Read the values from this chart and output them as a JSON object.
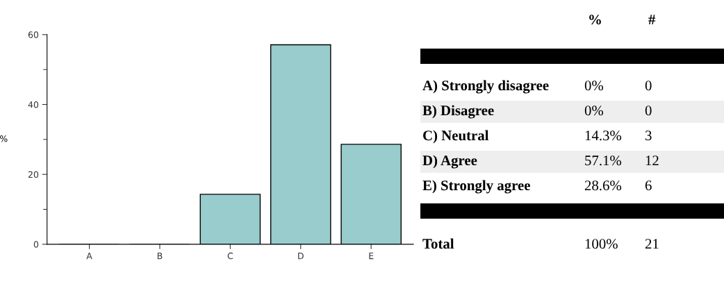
{
  "chart_data": [
    {
      "type": "bar",
      "categories": [
        "A",
        "B",
        "C",
        "D",
        "E"
      ],
      "values": [
        0,
        0,
        14.3,
        57.1,
        28.6
      ],
      "color": "#99cccc",
      "ylabel": "%",
      "ylim": [
        0,
        60
      ],
      "yticks": [
        0,
        20,
        40,
        60
      ],
      "grid": false,
      "legend": false
    },
    {
      "type": "other",
      "annotations": [
        "%",
        "#",
        "A) Strongly disagree",
        "0%",
        "0",
        "B) Disagree",
        "0%",
        "0",
        "C) Neutral",
        "14.3%",
        "3",
        "D) Agree",
        "57.1%",
        "12",
        "E) Strongly agree",
        "28.6%",
        "6",
        "Total",
        "100%",
        "21"
      ]
    }
  ]
}
